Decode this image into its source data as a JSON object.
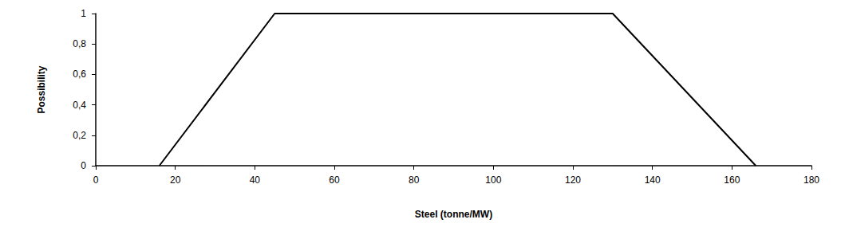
{
  "chart_data": {
    "type": "line",
    "x_label": "Steel (tonne/MW)",
    "y_label": "Possibility",
    "x": [
      16,
      45,
      130,
      166
    ],
    "values": [
      0,
      1,
      1,
      0
    ],
    "color": "#000000",
    "xlim": [
      0,
      180
    ],
    "xticks": [
      0,
      20,
      40,
      60,
      80,
      100,
      120,
      140,
      160,
      180
    ],
    "ylim": [
      0,
      1
    ],
    "yticks": [
      0,
      {
        "value": 0.2,
        "label": "0,2"
      },
      {
        "value": 0.4,
        "label": "0,4"
      },
      {
        "value": 0.6,
        "label": "0,6"
      },
      {
        "value": 0.8,
        "label": "0,8"
      },
      1
    ],
    "grid": false
  }
}
